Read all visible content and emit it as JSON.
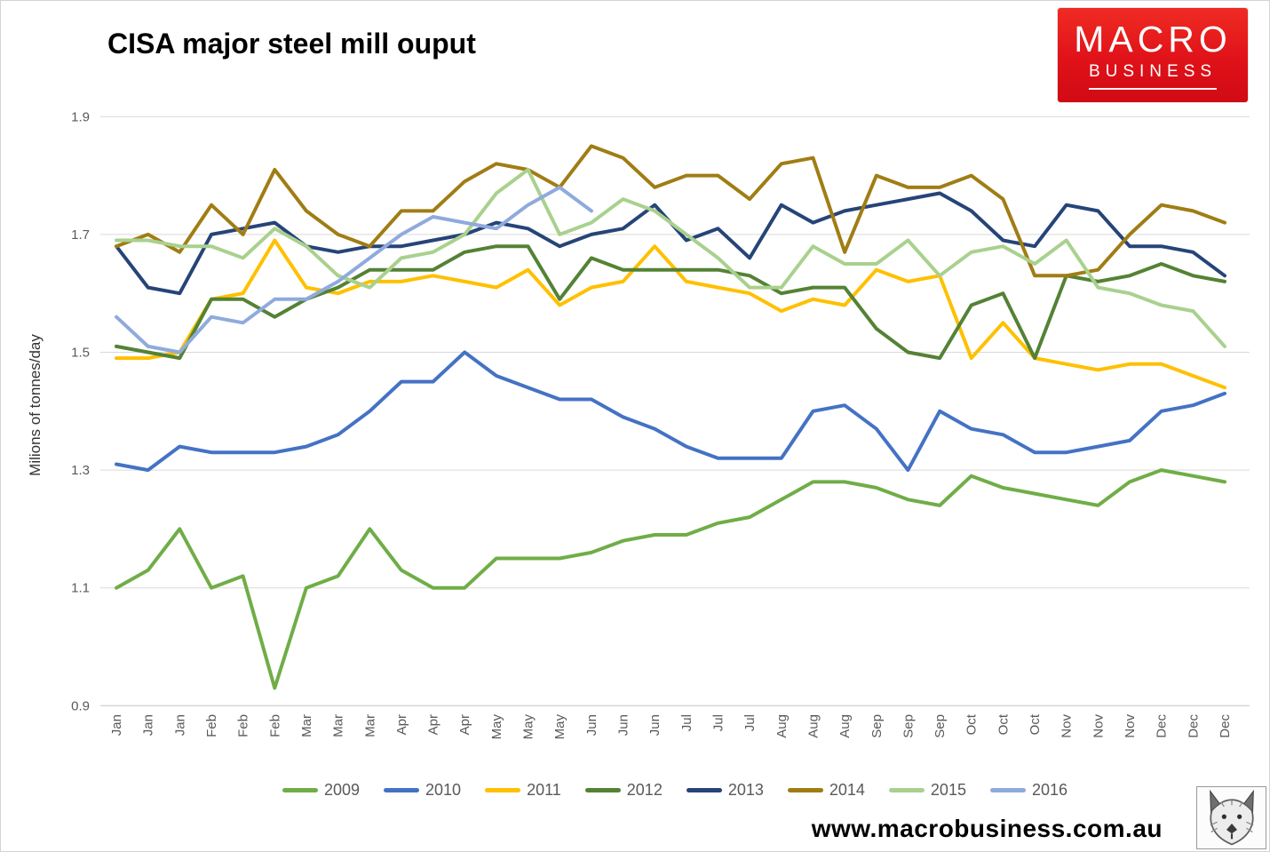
{
  "logo": {
    "line1": "MACRO",
    "line2": "BUSINESS",
    "bg_color": "#d8141b",
    "icon": "macrobusiness-logo"
  },
  "footer": {
    "url": "www.macrobusiness.com.au",
    "wolf_icon": "wolf-sketch-icon"
  },
  "chart_data": {
    "type": "line",
    "title": "CISA major steel mill ouput",
    "ylabel": "Milions of tonnes/day",
    "xlabel": "",
    "ylim": [
      0.9,
      1.9
    ],
    "yticks": [
      1.9,
      1.7,
      1.5,
      1.3,
      1.1,
      0.9
    ],
    "grid": "horizontal-only",
    "gridline_color": "#d9d9d9",
    "axis_line_color": "#c6c6c6",
    "tick_color": "#595959",
    "legend_position": "bottom",
    "categories": [
      "Jan",
      "Jan",
      "Jan",
      "Feb",
      "Feb",
      "Feb",
      "Mar",
      "Mar",
      "Mar",
      "Apr",
      "Apr",
      "Apr",
      "May",
      "May",
      "May",
      "Jun",
      "Jun",
      "Jun",
      "Jul",
      "Jul",
      "Jul",
      "Aug",
      "Aug",
      "Aug",
      "Sep",
      "Sep",
      "Sep",
      "Oct",
      "Oct",
      "Oct",
      "Nov",
      "Nov",
      "Nov",
      "Dec",
      "Dec",
      "Dec"
    ],
    "series": [
      {
        "name": "2009",
        "color": "#70AD47",
        "values": [
          1.1,
          1.13,
          1.2,
          1.1,
          1.12,
          0.93,
          1.1,
          1.12,
          1.2,
          1.13,
          1.1,
          1.1,
          1.15,
          1.15,
          1.15,
          1.16,
          1.18,
          1.19,
          1.19,
          1.21,
          1.22,
          1.25,
          1.28,
          1.28,
          1.27,
          1.25,
          1.24,
          1.29,
          1.27,
          1.26,
          1.25,
          1.24,
          1.28,
          1.3,
          1.29,
          1.28
        ]
      },
      {
        "name": "2010",
        "color": "#4472C4",
        "values": [
          1.31,
          1.3,
          1.34,
          1.33,
          1.33,
          1.33,
          1.34,
          1.36,
          1.4,
          1.45,
          1.45,
          1.5,
          1.46,
          1.44,
          1.42,
          1.42,
          1.39,
          1.37,
          1.34,
          1.32,
          1.32,
          1.32,
          1.4,
          1.41,
          1.37,
          1.3,
          1.4,
          1.37,
          1.36,
          1.33,
          1.33,
          1.34,
          1.35,
          1.4,
          1.41,
          1.43
        ]
      },
      {
        "name": "2011",
        "color": "#FFC000",
        "values": [
          1.49,
          1.49,
          1.5,
          1.59,
          1.6,
          1.69,
          1.61,
          1.6,
          1.62,
          1.62,
          1.63,
          1.62,
          1.61,
          1.64,
          1.58,
          1.61,
          1.62,
          1.68,
          1.62,
          1.61,
          1.6,
          1.57,
          1.59,
          1.58,
          1.64,
          1.62,
          1.63,
          1.49,
          1.55,
          1.49,
          1.48,
          1.47,
          1.48,
          1.48,
          1.46,
          1.44
        ]
      },
      {
        "name": "2012",
        "color": "#548235",
        "values": [
          1.51,
          1.5,
          1.49,
          1.59,
          1.59,
          1.56,
          1.59,
          1.61,
          1.64,
          1.64,
          1.64,
          1.67,
          1.68,
          1.68,
          1.59,
          1.66,
          1.64,
          1.64,
          1.64,
          1.64,
          1.63,
          1.6,
          1.61,
          1.61,
          1.54,
          1.5,
          1.49,
          1.58,
          1.6,
          1.49,
          1.63,
          1.62,
          1.63,
          1.65,
          1.63,
          1.62
        ]
      },
      {
        "name": "2013",
        "color": "#264478",
        "values": [
          1.68,
          1.61,
          1.6,
          1.7,
          1.71,
          1.72,
          1.68,
          1.67,
          1.68,
          1.68,
          1.69,
          1.7,
          1.72,
          1.71,
          1.68,
          1.7,
          1.71,
          1.75,
          1.69,
          1.71,
          1.66,
          1.75,
          1.72,
          1.74,
          1.75,
          1.76,
          1.77,
          1.74,
          1.69,
          1.68,
          1.75,
          1.74,
          1.68,
          1.68,
          1.67,
          1.63
        ]
      },
      {
        "name": "2014",
        "color": "#A07D14",
        "values": [
          1.68,
          1.7,
          1.67,
          1.75,
          1.7,
          1.81,
          1.74,
          1.7,
          1.68,
          1.74,
          1.74,
          1.79,
          1.82,
          1.81,
          1.78,
          1.85,
          1.83,
          1.78,
          1.8,
          1.8,
          1.76,
          1.82,
          1.83,
          1.67,
          1.8,
          1.78,
          1.78,
          1.8,
          1.76,
          1.63,
          1.63,
          1.64,
          1.7,
          1.75,
          1.74,
          1.72
        ]
      },
      {
        "name": "2015",
        "color": "#A9D18E",
        "values": [
          1.69,
          1.69,
          1.68,
          1.68,
          1.66,
          1.71,
          1.68,
          1.63,
          1.61,
          1.66,
          1.67,
          1.7,
          1.77,
          1.81,
          1.7,
          1.72,
          1.76,
          1.74,
          1.7,
          1.66,
          1.61,
          1.61,
          1.68,
          1.65,
          1.65,
          1.69,
          1.63,
          1.67,
          1.68,
          1.65,
          1.69,
          1.61,
          1.6,
          1.58,
          1.57,
          1.51
        ]
      },
      {
        "name": "2016",
        "color": "#8FAADC",
        "values": [
          1.56,
          1.51,
          1.5,
          1.56,
          1.55,
          1.59,
          1.59,
          1.62,
          1.66,
          1.7,
          1.73,
          1.72,
          1.71,
          1.75,
          1.78,
          1.74,
          null,
          null,
          null,
          null,
          null,
          null,
          null,
          null,
          null,
          null,
          null,
          null,
          null,
          null,
          null,
          null,
          null,
          null,
          null,
          null
        ]
      }
    ]
  }
}
